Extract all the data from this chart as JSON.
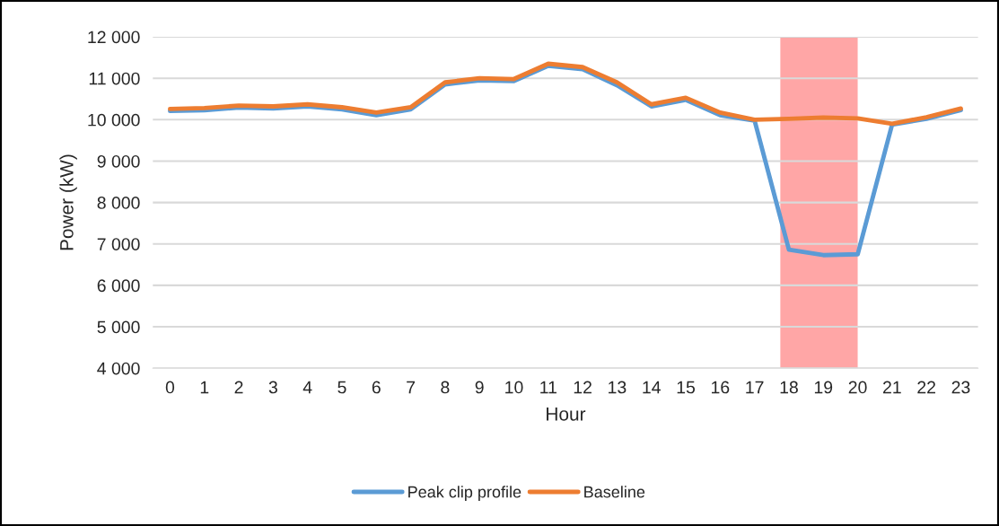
{
  "chart_data": {
    "type": "line",
    "xlabel": "Hour",
    "ylabel": "Power (kW)",
    "x": [
      0,
      1,
      2,
      3,
      4,
      5,
      6,
      7,
      8,
      9,
      10,
      11,
      12,
      13,
      14,
      15,
      16,
      17,
      18,
      19,
      20,
      21,
      22,
      23
    ],
    "series": [
      {
        "name": "Peak clip profile",
        "color": "#5b9bd5",
        "values": [
          10210,
          10230,
          10290,
          10270,
          10320,
          10250,
          10110,
          10250,
          10850,
          10950,
          10930,
          11300,
          11220,
          10830,
          10320,
          10480,
          10110,
          9980,
          6860,
          6730,
          6750,
          9880,
          10020,
          10230
        ]
      },
      {
        "name": "Baseline",
        "color": "#ed7d31",
        "values": [
          10260,
          10280,
          10340,
          10320,
          10370,
          10300,
          10170,
          10300,
          10900,
          11000,
          10980,
          11350,
          11270,
          10900,
          10370,
          10530,
          10170,
          10000,
          10020,
          10050,
          10030,
          9900,
          10060,
          10270
        ]
      }
    ],
    "xlim": [
      -0.5,
      23.5
    ],
    "xticks": [
      0,
      1,
      2,
      3,
      4,
      5,
      6,
      7,
      8,
      9,
      10,
      11,
      12,
      13,
      14,
      15,
      16,
      17,
      18,
      19,
      20,
      21,
      22,
      23
    ],
    "ylim": [
      4000,
      12000
    ],
    "yticks": [
      {
        "value": 4000,
        "label": "4 000"
      },
      {
        "value": 5000,
        "label": "5 000"
      },
      {
        "value": 6000,
        "label": "6 000"
      },
      {
        "value": 7000,
        "label": "7 000"
      },
      {
        "value": 8000,
        "label": "8 000"
      },
      {
        "value": 9000,
        "label": "9 000"
      },
      {
        "value": 10000,
        "label": "10 000"
      },
      {
        "value": 11000,
        "label": "11 000"
      },
      {
        "value": 12000,
        "label": "12 000"
      }
    ],
    "bands": [
      {
        "axis": "x",
        "from": 17.75,
        "to": 20,
        "color": "#ff0000"
      }
    ],
    "grid": "y",
    "legend": "bottom",
    "marker": "none",
    "line_style": "solid"
  }
}
